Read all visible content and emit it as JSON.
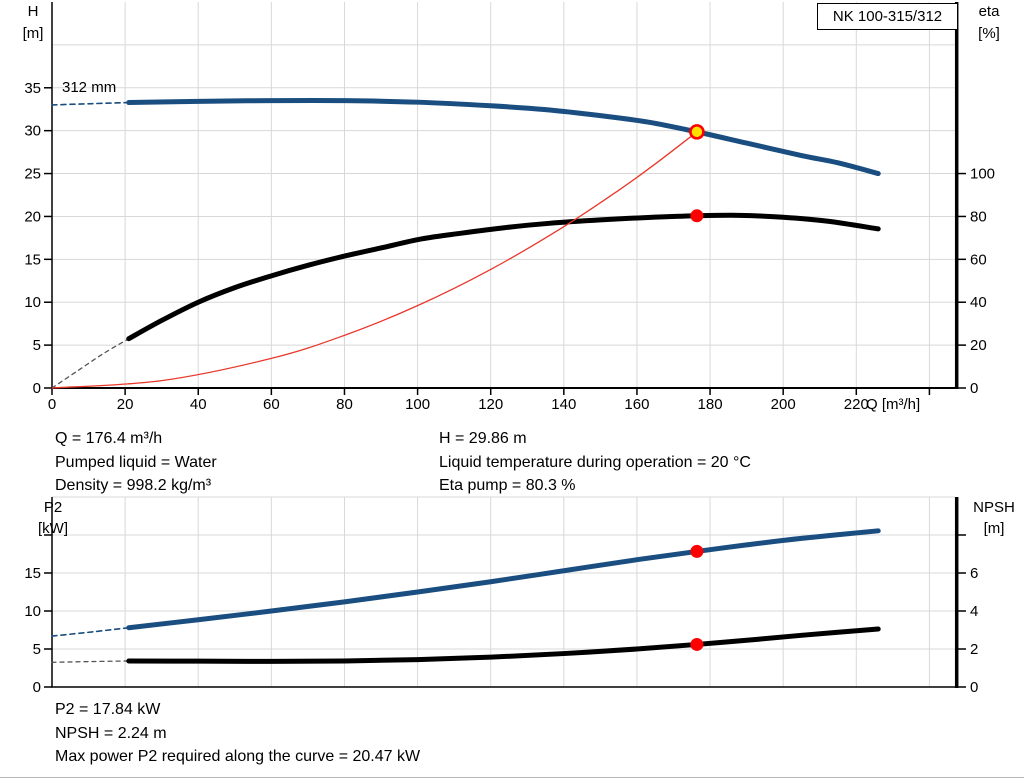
{
  "colors": {
    "grid": "#d8d8d8",
    "axis": "#000000",
    "blue": "#1a4e80",
    "black": "#000000",
    "gray_dash": "#555555",
    "red_line": "#e8382b",
    "dot_red": "#ff0000",
    "yellow": "#ffe100"
  },
  "info_top": {
    "lines_left": [
      "Q = 176.4 m³/h",
      "Pumped liquid = Water",
      "Density = 998.2 kg/m³"
    ],
    "lines_right": [
      "H = 29.86 m",
      "Liquid temperature during operation = 20 °C",
      "Eta pump = 80.3 %"
    ]
  },
  "info_bottom": [
    "P2 = 17.84 kW",
    "NPSH = 2.24 m",
    "Max power P2 required along the curve = 20.47 kW"
  ],
  "chart_data": [
    {
      "type": "line",
      "title": "NK 100-315/312",
      "impeller_label": "312 mm",
      "x_axis": {
        "name": "Q",
        "unit": "[m³/h]",
        "label": "Q [m³/h]",
        "min": 0,
        "max": 247,
        "grid": [
          20,
          40,
          60,
          80,
          100,
          120,
          140,
          160,
          180,
          200,
          220,
          240
        ],
        "ticks": [
          0,
          20,
          40,
          60,
          80,
          100,
          120,
          140,
          160,
          180,
          200,
          220
        ]
      },
      "left_axis": {
        "name": "H",
        "unit": "[m]",
        "label": "H [m]",
        "min": 0,
        "max": 45,
        "grid": [
          5,
          10,
          15,
          20,
          25,
          30,
          35,
          40
        ],
        "ticks": [
          0,
          5,
          10,
          15,
          20,
          25,
          30,
          35
        ],
        "labeled": [
          0,
          5,
          10,
          15,
          20,
          25,
          30,
          35
        ]
      },
      "right_axis": {
        "name": "eta",
        "unit": "[%]",
        "label": "eta [%]",
        "min": 0,
        "max": 180,
        "ticks": [
          0,
          20,
          40,
          60,
          80,
          100
        ],
        "labeled": [
          0,
          20,
          40,
          60,
          80,
          100
        ]
      },
      "series": [
        {
          "name": "head-curve-extrapolated",
          "axis": "left",
          "color": "blue",
          "width": 1.6,
          "dash": "5 4",
          "points": [
            [
              0,
              33.0
            ],
            [
              11,
              33.15
            ],
            [
              21,
              33.28
            ]
          ]
        },
        {
          "name": "efficiency-curve-extrapolated",
          "axis": "right",
          "color": "gray_dash",
          "width": 1.3,
          "dash": "4 4",
          "points": [
            [
              0,
              0
            ],
            [
              7,
              8
            ],
            [
              14,
              16
            ],
            [
              21,
              23
            ]
          ]
        },
        {
          "name": "efficiency-curve",
          "axis": "right",
          "color": "black",
          "width": 5,
          "points": [
            [
              21,
              23
            ],
            [
              30,
              31.5
            ],
            [
              40,
              40
            ],
            [
              50,
              46.8
            ],
            [
              60,
              52.3
            ],
            [
              70,
              57.2
            ],
            [
              80,
              61.5
            ],
            [
              90,
              65.3
            ],
            [
              101,
              69.5
            ],
            [
              112,
              72.2
            ],
            [
              124,
              74.8
            ],
            [
              136,
              76.8
            ],
            [
              150,
              78.4
            ],
            [
              163,
              79.5
            ],
            [
              176.4,
              80.3
            ],
            [
              188,
              80.5
            ],
            [
              200,
              79.6
            ],
            [
              212,
              77.8
            ],
            [
              226,
              74.2
            ]
          ]
        },
        {
          "name": "head-curve-312mm",
          "axis": "left",
          "color": "blue",
          "width": 5,
          "points": [
            [
              21,
              33.28
            ],
            [
              40,
              33.42
            ],
            [
              60,
              33.5
            ],
            [
              80,
              33.5
            ],
            [
              100,
              33.32
            ],
            [
              120,
              32.9
            ],
            [
              135,
              32.45
            ],
            [
              150,
              31.75
            ],
            [
              163,
              31.0
            ],
            [
              176.4,
              29.86
            ],
            [
              190,
              28.55
            ],
            [
              205,
              27.1
            ],
            [
              215,
              26.25
            ],
            [
              226,
              25.0
            ]
          ]
        },
        {
          "name": "duty-parabola",
          "axis": "left",
          "color": "red_line",
          "width": 1.3,
          "points": [
            [
              0,
              0
            ],
            [
              30,
              0.86
            ],
            [
              60,
              3.45
            ],
            [
              80,
              6.14
            ],
            [
              100,
              9.6
            ],
            [
              120,
              13.82
            ],
            [
              140,
              18.81
            ],
            [
              155,
              23.05
            ],
            [
              165,
              26.12
            ],
            [
              176.4,
              29.86
            ]
          ]
        }
      ],
      "markers": [
        {
          "name": "duty-point",
          "axis": "left",
          "x": 176.4,
          "y": 29.86,
          "r": 6.5,
          "fill": "yellow",
          "stroke": "dot_red",
          "stroke_width": 2.6
        },
        {
          "name": "efficiency-point",
          "axis": "right",
          "x": 176.4,
          "y": 80.3,
          "r": 6.5,
          "fill": "dot_red"
        }
      ]
    },
    {
      "type": "line",
      "x_axis": {
        "name": "Q",
        "unit": "[m³/h]",
        "min": 0,
        "max": 247,
        "grid": [
          20,
          40,
          60,
          80,
          100,
          120,
          140,
          160,
          180,
          200,
          220,
          240
        ],
        "ticks": []
      },
      "left_axis": {
        "name": "P2",
        "unit": "[kW]",
        "label": "P2 [kW]",
        "min": 0,
        "max": 25,
        "grid": [
          5,
          10,
          15,
          20,
          25
        ],
        "ticks": [
          0,
          5,
          10,
          15,
          20
        ],
        "labeled": [
          0,
          5,
          10,
          15
        ]
      },
      "right_axis": {
        "name": "NPSH",
        "unit": "[m]",
        "label": "NPSH [m]",
        "min": 0,
        "max": 10,
        "ticks": [
          0,
          2,
          4,
          6,
          8
        ],
        "labeled": [
          0,
          2,
          4,
          6
        ]
      },
      "series": [
        {
          "name": "p2-curve-extrapolated",
          "axis": "left",
          "color": "blue",
          "width": 1.6,
          "dash": "5 4",
          "points": [
            [
              0,
              6.7
            ],
            [
              11,
              7.25
            ],
            [
              21,
              7.8
            ]
          ]
        },
        {
          "name": "npsh-curve-extrapolated",
          "axis": "right",
          "color": "gray_dash",
          "width": 1.3,
          "dash": "4 4",
          "points": [
            [
              0,
              1.3
            ],
            [
              11,
              1.34
            ],
            [
              21,
              1.37
            ]
          ]
        },
        {
          "name": "npsh-curve",
          "axis": "right",
          "color": "black",
          "width": 5,
          "points": [
            [
              21,
              1.37
            ],
            [
              40,
              1.36
            ],
            [
              60,
              1.35
            ],
            [
              80,
              1.37
            ],
            [
              100,
              1.44
            ],
            [
              120,
              1.57
            ],
            [
              140,
              1.76
            ],
            [
              160,
              2.0
            ],
            [
              176.4,
              2.24
            ],
            [
              190,
              2.46
            ],
            [
              205,
              2.72
            ],
            [
              226,
              3.05
            ]
          ]
        },
        {
          "name": "p2-curve",
          "axis": "left",
          "color": "blue",
          "width": 5,
          "points": [
            [
              21,
              7.8
            ],
            [
              40,
              8.85
            ],
            [
              60,
              10.0
            ],
            [
              80,
              11.2
            ],
            [
              100,
              12.5
            ],
            [
              120,
              13.85
            ],
            [
              140,
              15.3
            ],
            [
              160,
              16.75
            ],
            [
              176.4,
              17.84
            ],
            [
              190,
              18.7
            ],
            [
              205,
              19.55
            ],
            [
              226,
              20.55
            ]
          ]
        }
      ],
      "markers": [
        {
          "name": "p2-point",
          "axis": "left",
          "x": 176.4,
          "y": 17.84,
          "r": 6.5,
          "fill": "dot_red"
        },
        {
          "name": "npsh-point",
          "axis": "right",
          "x": 176.4,
          "y": 2.24,
          "r": 6.5,
          "fill": "dot_red"
        }
      ]
    }
  ]
}
